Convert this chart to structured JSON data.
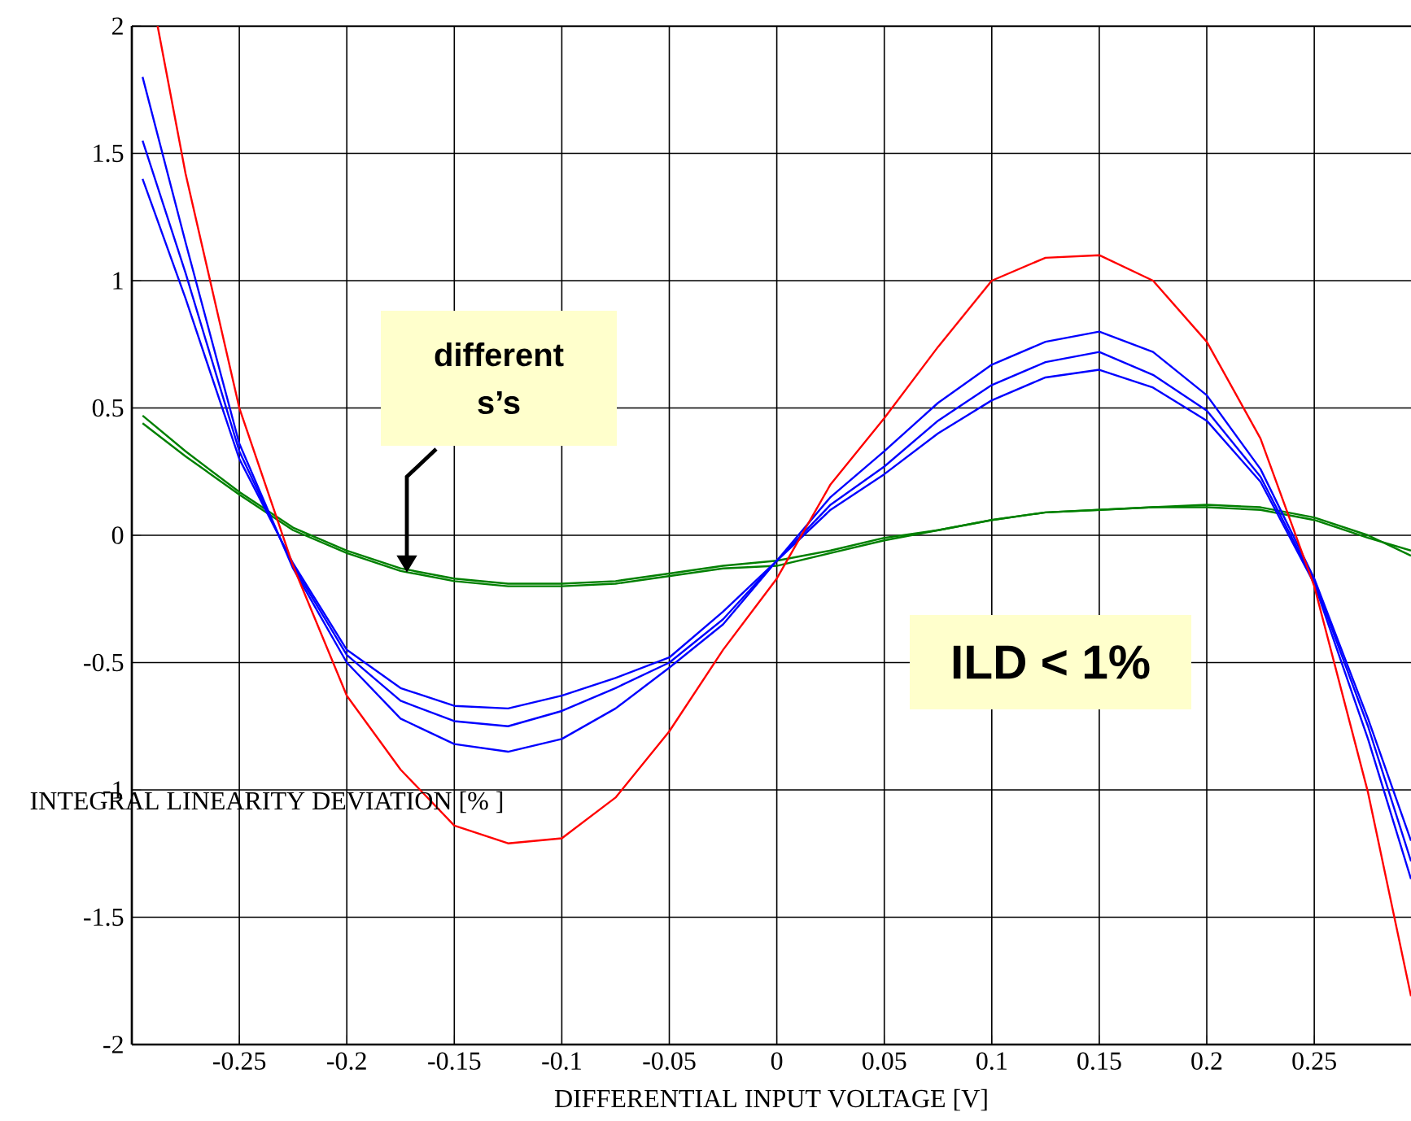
{
  "chart_data": {
    "type": "line",
    "xlabel": "DIFFERENTIAL INPUT VOLTAGE [V]",
    "ylabel": "INTEGRAL LINEARITY DEVIATION  [% ]",
    "x": [
      -0.295,
      -0.275,
      -0.25,
      -0.225,
      -0.2,
      -0.175,
      -0.15,
      -0.125,
      -0.1,
      -0.075,
      -0.05,
      -0.025,
      0,
      0.025,
      0.05,
      0.075,
      0.1,
      0.125,
      0.15,
      0.175,
      0.2,
      0.225,
      0.25,
      0.275,
      0.295
    ],
    "series": [
      {
        "color": "#ff0000",
        "x": [
          -0.288,
          -0.275,
          -0.25,
          -0.225,
          -0.2,
          -0.175,
          -0.15,
          -0.125,
          -0.1,
          -0.075,
          -0.05,
          -0.025,
          0,
          0.025,
          0.05,
          0.075,
          0.1,
          0.125,
          0.15,
          0.175,
          0.2,
          0.225,
          0.25,
          0.275,
          0.295
        ],
        "values": [
          2.0,
          1.42,
          0.5,
          -0.12,
          -0.63,
          -0.92,
          -1.14,
          -1.21,
          -1.19,
          -1.03,
          -0.77,
          -0.45,
          -0.17,
          0.2,
          0.46,
          0.74,
          1.0,
          1.09,
          1.1,
          1.0,
          0.76,
          0.38,
          -0.2,
          -1.01,
          -1.81
        ]
      },
      {
        "color": "#0000ff",
        "values": [
          1.55,
          1.03,
          0.33,
          -0.12,
          -0.47,
          -0.65,
          -0.73,
          -0.75,
          -0.69,
          -0.6,
          -0.5,
          -0.33,
          -0.1,
          0.12,
          0.27,
          0.45,
          0.59,
          0.68,
          0.72,
          0.63,
          0.49,
          0.23,
          -0.18,
          -0.75,
          -1.28
        ]
      },
      {
        "color": "#0000ff",
        "values": [
          1.8,
          1.15,
          0.36,
          -0.13,
          -0.5,
          -0.72,
          -0.82,
          -0.85,
          -0.8,
          -0.68,
          -0.52,
          -0.35,
          -0.1,
          0.15,
          0.33,
          0.52,
          0.67,
          0.76,
          0.8,
          0.72,
          0.55,
          0.26,
          -0.17,
          -0.72,
          -1.2
        ]
      },
      {
        "color": "#0000ff",
        "values": [
          1.4,
          0.93,
          0.3,
          -0.11,
          -0.45,
          -0.6,
          -0.67,
          -0.68,
          -0.63,
          -0.56,
          -0.48,
          -0.3,
          -0.1,
          0.1,
          0.24,
          0.4,
          0.53,
          0.62,
          0.65,
          0.58,
          0.45,
          0.21,
          -0.19,
          -0.8,
          -1.35
        ]
      },
      {
        "color": "#008000",
        "values": [
          0.47,
          0.33,
          0.17,
          0.03,
          -0.06,
          -0.13,
          -0.17,
          -0.19,
          -0.19,
          -0.18,
          -0.15,
          -0.12,
          -0.1,
          -0.06,
          -0.01,
          0.02,
          0.06,
          0.09,
          0.1,
          0.11,
          0.11,
          0.1,
          0.06,
          -0.01,
          -0.06
        ]
      },
      {
        "color": "#008000",
        "values": [
          0.44,
          0.31,
          0.16,
          0.02,
          -0.07,
          -0.14,
          -0.18,
          -0.2,
          -0.2,
          -0.19,
          -0.16,
          -0.13,
          -0.12,
          -0.07,
          -0.02,
          0.02,
          0.06,
          0.09,
          0.1,
          0.11,
          0.12,
          0.11,
          0.07,
          0.0,
          -0.08
        ]
      }
    ],
    "xlim": [
      -0.3,
      0.295
    ],
    "ylim": [
      -2,
      2
    ],
    "xticks": [
      -0.25,
      -0.2,
      -0.15,
      -0.1,
      -0.05,
      0,
      0.05,
      0.1,
      0.15,
      0.2,
      0.25
    ],
    "yticks": [
      -2,
      -1.5,
      -1,
      -0.5,
      0,
      0.5,
      1,
      1.5,
      2
    ],
    "grid": true,
    "marker": "none",
    "line_style": "solid",
    "annotations": [
      "different s’s",
      "ILD < 1%"
    ]
  }
}
